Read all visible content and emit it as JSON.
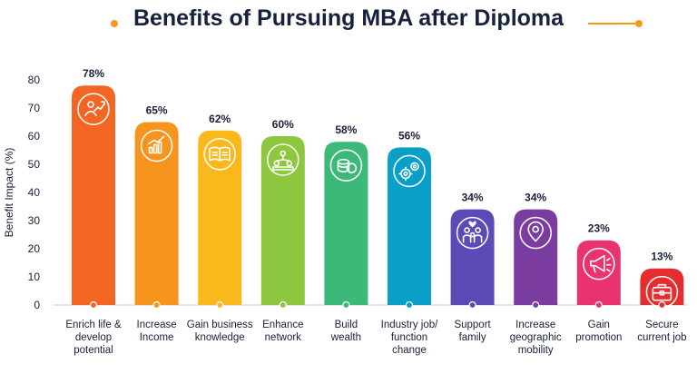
{
  "title": "Benefits of Pursuing MBA after Diploma",
  "chart_data": {
    "type": "bar",
    "title": "Benefits of Pursuing MBA after Diploma",
    "ylabel": "Benefit Impact (%)",
    "xlabel": "",
    "ylim": [
      0,
      85
    ],
    "yticks": [
      0,
      10,
      20,
      30,
      40,
      50,
      60,
      70,
      80
    ],
    "grid": false,
    "categories": [
      [
        "Enrich life &",
        "develop",
        "potential"
      ],
      [
        "Increase",
        "Income"
      ],
      [
        "Gain business",
        "knowledge"
      ],
      [
        "Enhance",
        "network"
      ],
      [
        "Build",
        "wealth"
      ],
      [
        "Industry job/",
        "function",
        "change"
      ],
      [
        "Support",
        "family"
      ],
      [
        "Increase",
        "geographic",
        "mobility"
      ],
      [
        "Gain",
        "promotion"
      ],
      [
        "Secure",
        "current job"
      ]
    ],
    "values": [
      78,
      65,
      62,
      60,
      58,
      56,
      34,
      34,
      23,
      13
    ],
    "data_labels": [
      "78%",
      "65%",
      "62%",
      "60%",
      "58%",
      "56%",
      "34%",
      "34%",
      "23%",
      "13%"
    ],
    "colors": [
      "#f26522",
      "#f7941d",
      "#f9b81b",
      "#8dc63f",
      "#3cb878",
      "#0a9fc7",
      "#5b4bb7",
      "#7a3c9e",
      "#e8336f",
      "#e52c2f"
    ],
    "icons": [
      "person-growth-icon",
      "rising-chart-icon",
      "open-book-icon",
      "network-icon",
      "coins-icon",
      "gears-icon",
      "family-icon",
      "location-pin-icon",
      "megaphone-icon",
      "briefcase-icon"
    ]
  }
}
